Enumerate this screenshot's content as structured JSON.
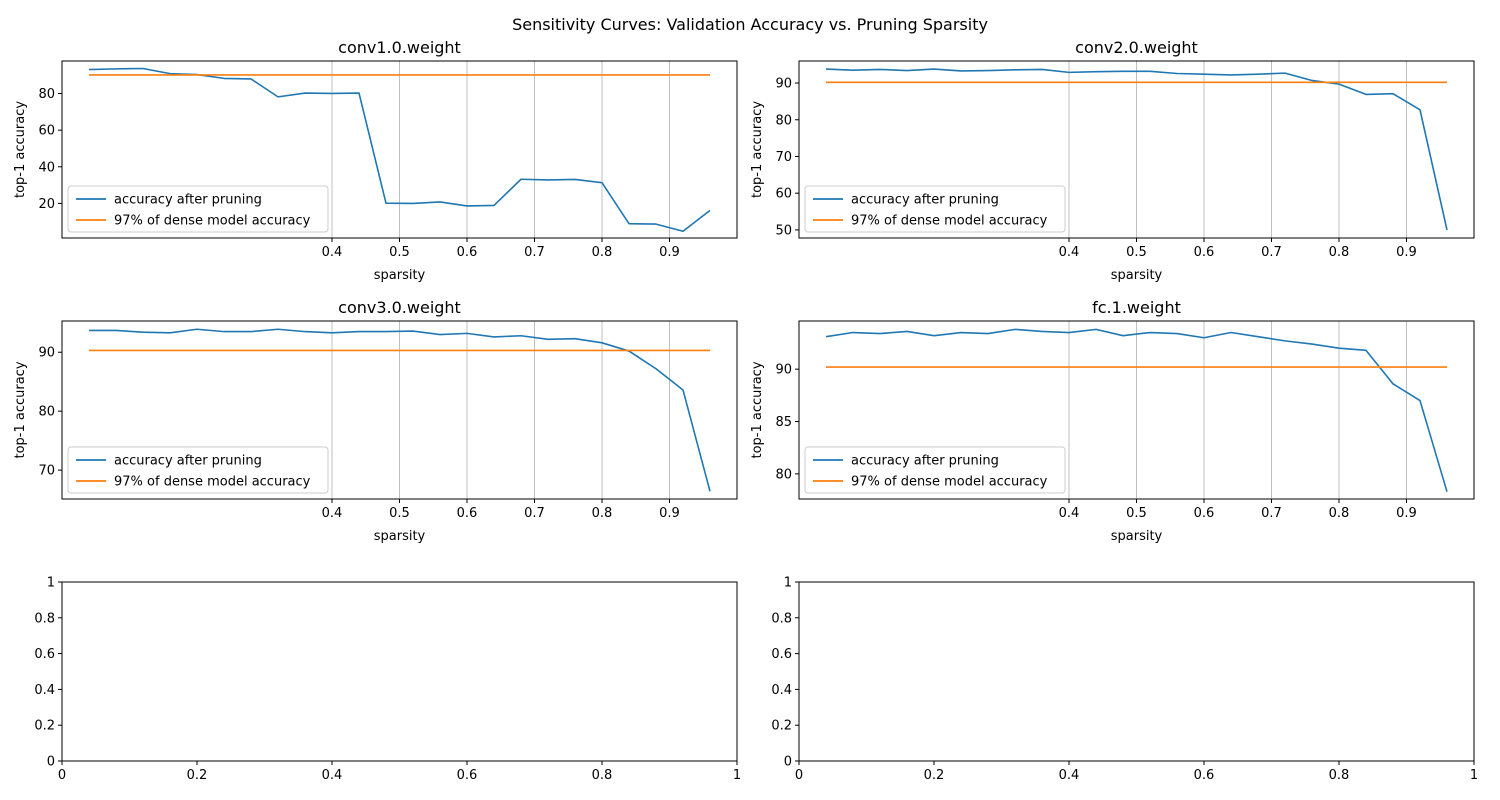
{
  "figure": {
    "title": "Sensitivity Curves: Validation Accuracy vs. Pruning Sparsity",
    "colors": {
      "accuracy": "#1f77b4",
      "threshold": "#ff7f0e",
      "grid": "#b0b0b0"
    }
  },
  "chart_data": [
    {
      "type": "line",
      "title": "conv1.0.weight",
      "xlabel": "sparsity",
      "ylabel": "top-1 accuracy",
      "xlim": [
        0.0,
        1.0
      ],
      "ylim": [
        1.1,
        97.8
      ],
      "xticks": [
        0.4,
        0.5,
        0.6,
        0.7,
        0.8,
        0.9
      ],
      "yticks": [
        20,
        40,
        60,
        80
      ],
      "grid": "x",
      "legend": "lower-left",
      "x": [
        0.04,
        0.08,
        0.12,
        0.16,
        0.2,
        0.24,
        0.28,
        0.32,
        0.36,
        0.4,
        0.44,
        0.48,
        0.52,
        0.56,
        0.6,
        0.64,
        0.68,
        0.72,
        0.76,
        0.8,
        0.84,
        0.88,
        0.92,
        0.96
      ],
      "series": [
        {
          "name": "accuracy after pruning",
          "values": [
            93.1,
            93.5,
            93.7,
            90.9,
            90.4,
            88.3,
            88.0,
            78.2,
            80.3,
            80.1,
            80.3,
            20.1,
            20.0,
            20.8,
            18.6,
            18.9,
            33.2,
            32.8,
            33.1,
            31.3,
            8.9,
            8.7,
            4.8,
            16.2
          ]
        },
        {
          "name": "97% of dense model accuracy",
          "values": [
            90.2,
            90.2,
            90.2,
            90.2,
            90.2,
            90.2,
            90.2,
            90.2,
            90.2,
            90.2,
            90.2,
            90.2,
            90.2,
            90.2,
            90.2,
            90.2,
            90.2,
            90.2,
            90.2,
            90.2,
            90.2,
            90.2,
            90.2,
            90.2
          ]
        }
      ]
    },
    {
      "type": "line",
      "title": "conv2.0.weight",
      "xlabel": "sparsity",
      "ylabel": "top-1 accuracy",
      "xlim": [
        0.0,
        1.0
      ],
      "ylim": [
        47.8,
        96.0
      ],
      "xticks": [
        0.4,
        0.5,
        0.6,
        0.7,
        0.8,
        0.9
      ],
      "yticks": [
        50,
        60,
        70,
        80,
        90
      ],
      "grid": "x",
      "legend": "lower-left",
      "x": [
        0.04,
        0.08,
        0.12,
        0.16,
        0.2,
        0.24,
        0.28,
        0.32,
        0.36,
        0.4,
        0.44,
        0.48,
        0.52,
        0.56,
        0.6,
        0.64,
        0.68,
        0.72,
        0.76,
        0.8,
        0.84,
        0.88,
        0.92,
        0.96
      ],
      "series": [
        {
          "name": "accuracy after pruning",
          "values": [
            93.8,
            93.5,
            93.7,
            93.4,
            93.8,
            93.3,
            93.4,
            93.6,
            93.7,
            92.9,
            93.1,
            93.2,
            93.2,
            92.6,
            92.4,
            92.2,
            92.4,
            92.7,
            90.7,
            89.7,
            86.9,
            87.1,
            82.7,
            50.0
          ]
        },
        {
          "name": "97% of dense model accuracy",
          "values": [
            90.2,
            90.2,
            90.2,
            90.2,
            90.2,
            90.2,
            90.2,
            90.2,
            90.2,
            90.2,
            90.2,
            90.2,
            90.2,
            90.2,
            90.2,
            90.2,
            90.2,
            90.2,
            90.2,
            90.2,
            90.2,
            90.2,
            90.2,
            90.2
          ]
        }
      ]
    },
    {
      "type": "line",
      "title": "conv3.0.weight",
      "xlabel": "sparsity",
      "ylabel": "top-1 accuracy",
      "xlim": [
        0.0,
        1.0
      ],
      "ylim": [
        65.1,
        95.3
      ],
      "xticks": [
        0.4,
        0.5,
        0.6,
        0.7,
        0.8,
        0.9
      ],
      "yticks": [
        70,
        80,
        90
      ],
      "grid": "x",
      "legend": "lower-left",
      "x": [
        0.04,
        0.08,
        0.12,
        0.16,
        0.2,
        0.24,
        0.28,
        0.32,
        0.36,
        0.4,
        0.44,
        0.48,
        0.52,
        0.56,
        0.6,
        0.64,
        0.68,
        0.72,
        0.76,
        0.8,
        0.84,
        0.88,
        0.92,
        0.96
      ],
      "series": [
        {
          "name": "accuracy after pruning",
          "values": [
            93.7,
            93.7,
            93.4,
            93.3,
            93.9,
            93.5,
            93.5,
            93.9,
            93.5,
            93.3,
            93.5,
            93.5,
            93.6,
            93.0,
            93.2,
            92.6,
            92.8,
            92.2,
            92.3,
            91.6,
            90.2,
            87.2,
            83.6,
            66.4
          ]
        },
        {
          "name": "97% of dense model accuracy",
          "values": [
            90.3,
            90.3,
            90.3,
            90.3,
            90.3,
            90.3,
            90.3,
            90.3,
            90.3,
            90.3,
            90.3,
            90.3,
            90.3,
            90.3,
            90.3,
            90.3,
            90.3,
            90.3,
            90.3,
            90.3,
            90.3,
            90.3,
            90.3,
            90.3
          ]
        }
      ]
    },
    {
      "type": "line",
      "title": "fc.1.weight",
      "xlabel": "sparsity",
      "ylabel": "top-1 accuracy",
      "xlim": [
        0.0,
        1.0
      ],
      "ylim": [
        77.6,
        94.6
      ],
      "xticks": [
        0.4,
        0.5,
        0.6,
        0.7,
        0.8,
        0.9
      ],
      "yticks": [
        80,
        85,
        90
      ],
      "grid": "x",
      "legend": "lower-left",
      "x": [
        0.04,
        0.08,
        0.12,
        0.16,
        0.2,
        0.24,
        0.28,
        0.32,
        0.36,
        0.4,
        0.44,
        0.48,
        0.52,
        0.56,
        0.6,
        0.64,
        0.68,
        0.72,
        0.76,
        0.8,
        0.84,
        0.88,
        0.92,
        0.96
      ],
      "series": [
        {
          "name": "accuracy after pruning",
          "values": [
            93.1,
            93.5,
            93.4,
            93.6,
            93.2,
            93.5,
            93.4,
            93.8,
            93.6,
            93.5,
            93.8,
            93.2,
            93.5,
            93.4,
            93.0,
            93.5,
            93.1,
            92.7,
            92.4,
            92.0,
            91.8,
            88.6,
            87.0,
            78.3
          ]
        },
        {
          "name": "97% of dense model accuracy",
          "values": [
            90.2,
            90.2,
            90.2,
            90.2,
            90.2,
            90.2,
            90.2,
            90.2,
            90.2,
            90.2,
            90.2,
            90.2,
            90.2,
            90.2,
            90.2,
            90.2,
            90.2,
            90.2,
            90.2,
            90.2,
            90.2,
            90.2,
            90.2,
            90.2
          ]
        }
      ]
    },
    {
      "type": "line",
      "title": "",
      "xlabel": "",
      "ylabel": "",
      "xlim": [
        0.0,
        1.0
      ],
      "ylim": [
        0.0,
        1.0
      ],
      "xticks": [
        0.0,
        0.2,
        0.4,
        0.6,
        0.8,
        1.0
      ],
      "yticks": [
        0.0,
        0.2,
        0.4,
        0.6,
        0.8,
        1.0
      ],
      "grid": "none",
      "legend": "none",
      "x": [],
      "series": []
    },
    {
      "type": "line",
      "title": "",
      "xlabel": "",
      "ylabel": "",
      "xlim": [
        0.0,
        1.0
      ],
      "ylim": [
        0.0,
        1.0
      ],
      "xticks": [
        0.0,
        0.2,
        0.4,
        0.6,
        0.8,
        1.0
      ],
      "yticks": [
        0.0,
        0.2,
        0.4,
        0.6,
        0.8,
        1.0
      ],
      "grid": "none",
      "legend": "none",
      "x": [],
      "series": []
    }
  ]
}
